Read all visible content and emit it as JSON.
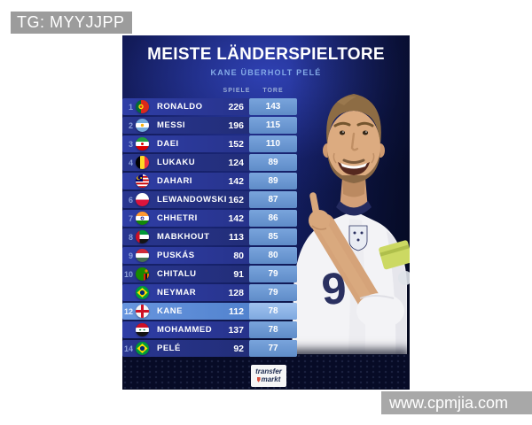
{
  "overlays": {
    "tg_badge": "TG: MYYJJPP",
    "watermark": "www.cpmjia.com"
  },
  "logo": {
    "line1": "transfer",
    "line2": "markt"
  },
  "photo": {
    "player": "Harry Kane",
    "shirt_number": "9"
  },
  "colors": {
    "background_navy": "#131f63",
    "row_blue": "#2c3a9e",
    "tore_box_blue": "#6d9ad4",
    "highlight_row_blue": "#5e90d8",
    "subtitle_blue": "#84abe8",
    "text_white": "#ffffff"
  },
  "chart_data": {
    "type": "table",
    "title": "MEISTE LÄNDERSPIELTORE",
    "subtitle": "KANE ÜBERHOLT PELÉ",
    "column_headers": {
      "spiele": "SPIELE",
      "tore": "TORE"
    },
    "highlight_player": "KANE",
    "rows": [
      {
        "rank_display": "1",
        "flag": "portugal",
        "country": "Portugal",
        "player": "RONALDO",
        "spiele": 226,
        "tore": 143,
        "highlight": false
      },
      {
        "rank_display": "2",
        "flag": "argentina",
        "country": "Argentina",
        "player": "MESSI",
        "spiele": 196,
        "tore": 115,
        "highlight": false
      },
      {
        "rank_display": "3",
        "flag": "iran",
        "country": "Iran",
        "player": "DAEI",
        "spiele": 152,
        "tore": 110,
        "highlight": false
      },
      {
        "rank_display": "4",
        "flag": "belgium",
        "country": "Belgium",
        "player": "LUKAKU",
        "spiele": 124,
        "tore": 89,
        "highlight": false
      },
      {
        "rank_display": "",
        "flag": "malaysia",
        "country": "Malaysia",
        "player": "DAHARI",
        "spiele": 142,
        "tore": 89,
        "highlight": false
      },
      {
        "rank_display": "6",
        "flag": "poland",
        "country": "Poland",
        "player": "LEWANDOWSKI",
        "spiele": 162,
        "tore": 87,
        "highlight": false
      },
      {
        "rank_display": "7",
        "flag": "india",
        "country": "India",
        "player": "CHHETRI",
        "spiele": 142,
        "tore": 86,
        "highlight": false
      },
      {
        "rank_display": "8",
        "flag": "uae",
        "country": "UAE",
        "player": "MABKHOUT",
        "spiele": 113,
        "tore": 85,
        "highlight": false
      },
      {
        "rank_display": "9",
        "flag": "hungary",
        "country": "Hungary",
        "player": "PUSKÁS",
        "spiele": 80,
        "tore": 80,
        "highlight": false
      },
      {
        "rank_display": "10",
        "flag": "zambia",
        "country": "Zambia",
        "player": "CHITALU",
        "spiele": 91,
        "tore": 79,
        "highlight": false
      },
      {
        "rank_display": "",
        "flag": "brazil",
        "country": "Brazil",
        "player": "NEYMAR",
        "spiele": 128,
        "tore": 79,
        "highlight": false
      },
      {
        "rank_display": "12",
        "flag": "england",
        "country": "England",
        "player": "KANE",
        "spiele": 112,
        "tore": 78,
        "highlight": true
      },
      {
        "rank_display": "",
        "flag": "iraq",
        "country": "Iraq",
        "player": "MOHAMMED",
        "spiele": 137,
        "tore": 78,
        "highlight": false
      },
      {
        "rank_display": "14",
        "flag": "brazil",
        "country": "Brazil",
        "player": "PELÉ",
        "spiele": 92,
        "tore": 77,
        "highlight": false
      }
    ]
  }
}
